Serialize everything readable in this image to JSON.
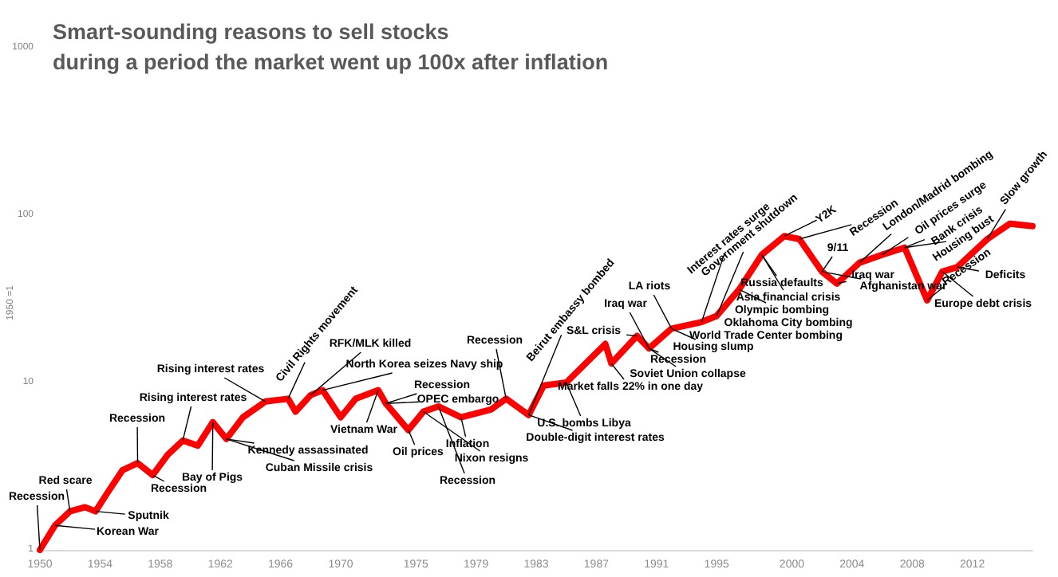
{
  "chart_data": {
    "type": "line",
    "title": "Smart-sounding reasons to sell stocks",
    "subtitle": "during a period the market went up 100x after inflation",
    "ylabel": "1950 =1",
    "x": [
      1950,
      1951,
      1952,
      1953,
      1953.7,
      1954.5,
      1955.5,
      1956.5,
      1957.5,
      1958.5,
      1959.5,
      1960.5,
      1961.5,
      1962.4,
      1963.5,
      1965,
      1966.5,
      1967,
      1968,
      1968.8,
      1970,
      1971,
      1972.5,
      1973,
      1974.5,
      1975.5,
      1976.5,
      1978,
      1980,
      1981,
      1982.5,
      1983.5,
      1985,
      1987.6,
      1988,
      1989.7,
      1990.5,
      1992,
      1994,
      1995,
      1996.5,
      1998,
      1999.5,
      2000.5,
      2002,
      2003,
      2004.5,
      2006,
      2007.5,
      2009,
      2010,
      2011,
      2013,
      2014.5,
      2016
    ],
    "series": [
      {
        "color": "#ff0000",
        "values": [
          1,
          1.4,
          1.7,
          1.8,
          1.7,
          2.2,
          3,
          3.3,
          2.8,
          3.7,
          4.5,
          4.2,
          5.8,
          4.6,
          6.2,
          7.7,
          8,
          6.7,
          8.4,
          9,
          6.2,
          8,
          9,
          7.5,
          5.2,
          6.7,
          7.2,
          6.2,
          6.9,
          8,
          6.4,
          9.6,
          10,
          17,
          13,
          19,
          16,
          21,
          23,
          25,
          36,
          58,
          75,
          72,
          46,
          39,
          52,
          58,
          64,
          31,
          46,
          49,
          72,
          89,
          86
        ]
      }
    ],
    "log": "y",
    "xlim": [
      1950,
      2016
    ],
    "xticks": [
      1950,
      1954,
      1958,
      1962,
      1966,
      1970,
      1975,
      1979,
      1983,
      1987,
      1991,
      1995,
      2000,
      2004,
      2008,
      2012
    ],
    "ylim": [
      1,
      1000
    ],
    "yticks": [
      1,
      10,
      100,
      1000
    ],
    "grid": false,
    "marker": "none",
    "line_style": "solid",
    "annotations": [
      {
        "text": "Recession",
        "x": 1950,
        "y": 1
      },
      {
        "text": "Red scare",
        "x": 1952,
        "y": 1.7
      },
      {
        "text": "Sputnik",
        "x": 1953.7,
        "y": 1.7
      },
      {
        "text": "Korean War",
        "x": 1951,
        "y": 1.4
      },
      {
        "text": "Recession",
        "x": 1956.5,
        "y": 3.3
      },
      {
        "text": "Recession",
        "x": 1957.5,
        "y": 2.8
      },
      {
        "text": "Rising interest rates",
        "x": 1959.5,
        "y": 4.5
      },
      {
        "text": "Rising interest rates",
        "x": 1965,
        "y": 7.7
      },
      {
        "text": "Bay of Pigs",
        "x": 1961.5,
        "y": 5.8
      },
      {
        "text": "Kennedy assassinated",
        "x": 1962.4,
        "y": 4.6
      },
      {
        "text": "Cuban Missile crisis",
        "x": 1962.4,
        "y": 4.6
      },
      {
        "text": "Civil Rights movement",
        "x": 1966.5,
        "y": 8
      },
      {
        "text": "RFK/MLK killed",
        "x": 1968,
        "y": 8.4
      },
      {
        "text": "North Korea seizes Navy ship",
        "x": 1968.8,
        "y": 9
      },
      {
        "text": "Vietnam War",
        "x": 1972.5,
        "y": 9
      },
      {
        "text": "Recession",
        "x": 1973,
        "y": 7.5
      },
      {
        "text": "OPEC embargo",
        "x": 1973,
        "y": 7.5
      },
      {
        "text": "Oil prices",
        "x": 1974.5,
        "y": 5.2
      },
      {
        "text": "Inflation",
        "x": 1978,
        "y": 6.2
      },
      {
        "text": "Nixon resigns",
        "x": 1975.5,
        "y": 6.7
      },
      {
        "text": "Recession",
        "x": 1976.5,
        "y": 7.2
      },
      {
        "text": "Recession",
        "x": 1981,
        "y": 8
      },
      {
        "text": "Beirut embassy bombed",
        "x": 1982.5,
        "y": 6.4
      },
      {
        "text": "Double-digit interest rates",
        "x": 1982.5,
        "y": 6.4
      },
      {
        "text": "U.S. bombs Libya",
        "x": 1985,
        "y": 10
      },
      {
        "text": "Market falls 22% in one day",
        "x": 1988,
        "y": 13
      },
      {
        "text": "S&L crisis",
        "x": 1989.7,
        "y": 19
      },
      {
        "text": "Iraq war",
        "x": 1990.5,
        "y": 16
      },
      {
        "text": "Soviet Union collapse",
        "x": 1990.5,
        "y": 16
      },
      {
        "text": "Recession",
        "x": 1990.5,
        "y": 16
      },
      {
        "text": "Housing slump",
        "x": 1992,
        "y": 21
      },
      {
        "text": "World Trade Center bombing",
        "x": 1992,
        "y": 21
      },
      {
        "text": "LA riots",
        "x": 1992,
        "y": 21
      },
      {
        "text": "Interest rates surge",
        "x": 1994,
        "y": 23
      },
      {
        "text": "Oklahoma City bombing",
        "x": 1995,
        "y": 25
      },
      {
        "text": "Government shutdown",
        "x": 1995,
        "y": 25
      },
      {
        "text": "Olympic bombing",
        "x": 1996.5,
        "y": 36
      },
      {
        "text": "Asia financial crisis",
        "x": 1998,
        "y": 58
      },
      {
        "text": "Russia defaults",
        "x": 1998,
        "y": 58
      },
      {
        "text": "Y2K",
        "x": 1999.5,
        "y": 75
      },
      {
        "text": "Recession",
        "x": 2000.5,
        "y": 72
      },
      {
        "text": "9/11",
        "x": 2002,
        "y": 46
      },
      {
        "text": "Iraq war",
        "x": 2003,
        "y": 39
      },
      {
        "text": "Afghanistan war",
        "x": 2002,
        "y": 46
      },
      {
        "text": "London/Madrid bombing",
        "x": 2004.5,
        "y": 52
      },
      {
        "text": "Oil prices surge",
        "x": 2006,
        "y": 58
      },
      {
        "text": "Bank crisis",
        "x": 2007.5,
        "y": 64
      },
      {
        "text": "Housing bust",
        "x": 2007.5,
        "y": 64
      },
      {
        "text": "Recession",
        "x": 2009,
        "y": 31
      },
      {
        "text": "Europe debt crisis",
        "x": 2010,
        "y": 46
      },
      {
        "text": "Deficits",
        "x": 2011,
        "y": 49
      },
      {
        "text": "Slow growth",
        "x": 2013,
        "y": 72
      }
    ]
  }
}
